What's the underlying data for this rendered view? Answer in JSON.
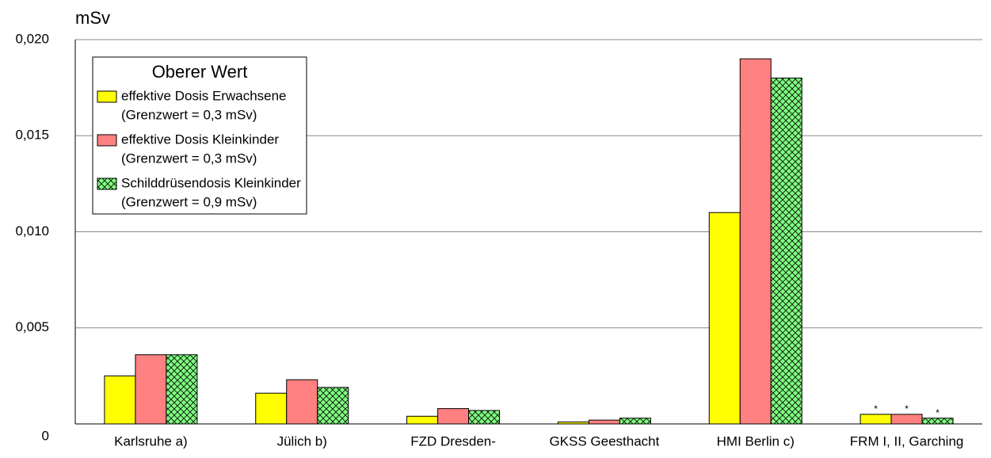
{
  "chart_data": {
    "type": "bar",
    "y_unit": "mSv",
    "legend_title": "Oberer Wert",
    "categories": [
      "Karlsruhe a)",
      "Jülich b)",
      "FZD Dresden-",
      "GKSS Geesthacht",
      "HMI Berlin c)",
      "FRM I, II, Garching"
    ],
    "series": [
      {
        "name": "effektive Dosis Erwachsene",
        "note": "(Grenzwert = 0,3 mSv)",
        "color": "#ffff00",
        "pattern": "solid",
        "values": [
          0.0025,
          0.0016,
          0.0004,
          0.0001,
          0.011,
          0.0005
        ],
        "footnote_marks": [
          null,
          null,
          null,
          null,
          null,
          "*"
        ]
      },
      {
        "name": "effektive Dosis Kleinkinder",
        "note": "(Grenzwert = 0,3 mSv)",
        "color": "#ff8080",
        "pattern": "solid",
        "values": [
          0.0036,
          0.0023,
          0.0008,
          0.0002,
          0.019,
          0.0005
        ],
        "footnote_marks": [
          null,
          null,
          null,
          null,
          null,
          "*"
        ]
      },
      {
        "name": "Schilddrüsendosis Kleinkinder",
        "note": "(Grenzwert = 0,9 mSv)",
        "color": "#80ff80",
        "pattern": "crosshatch",
        "values": [
          0.0036,
          0.0019,
          0.0007,
          0.0003,
          0.018,
          0.0003
        ],
        "footnote_marks": [
          null,
          null,
          null,
          null,
          null,
          "*"
        ]
      }
    ],
    "ylim": [
      0,
      0.02
    ],
    "yticks": [
      0,
      {
        "value": 0.005,
        "label": "0,005"
      },
      {
        "value": 0.01,
        "label": "0,010"
      },
      {
        "value": 0.015,
        "label": "0,015"
      },
      {
        "value": 0.02,
        "label": "0,020"
      }
    ],
    "grid": true
  }
}
